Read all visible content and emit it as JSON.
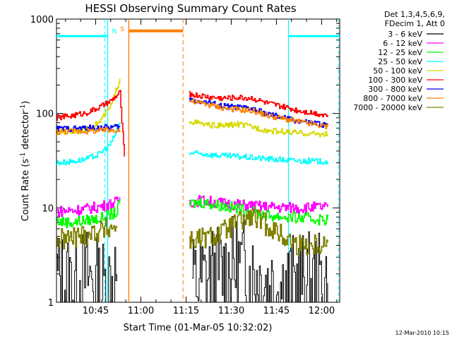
{
  "chart_data": {
    "type": "line",
    "title": "HESSI Observing Summary Count Rates",
    "xlabel": "Start Time (01-Mar-05 10:32:02)",
    "ylabel_prefix": "Count Rate (s",
    "ylabel_sup": "-1",
    "ylabel_mid": " detector",
    "ylabel_suffix": ")",
    "y_scale": "log",
    "ylim": [
      1,
      1000
    ],
    "xlim_minutes": [
      0,
      94
    ],
    "x_ticks": [
      {
        "m": 13,
        "label": "10:45"
      },
      {
        "m": 28,
        "label": "11:00"
      },
      {
        "m": 43,
        "label": "11:15"
      },
      {
        "m": 58,
        "label": "11:30"
      },
      {
        "m": 73,
        "label": "11:45"
      },
      {
        "m": 88,
        "label": "12:00"
      }
    ],
    "y_ticks": [
      {
        "v": 1,
        "label": "1"
      },
      {
        "v": 10,
        "label": "10"
      },
      {
        "v": 100,
        "label": "100"
      },
      {
        "v": 1000,
        "label": "1000"
      }
    ],
    "legend_header": [
      "Det 1,3,4,5,6,9,",
      "FDecim 1, Att 0"
    ],
    "series": [
      {
        "name": "3 - 6 keV",
        "color": "#000000",
        "seg1": [
          [
            0,
            1.8
          ],
          [
            5,
            1.6
          ],
          [
            10,
            1.9
          ],
          [
            15,
            1.4
          ],
          [
            20,
            2.0
          ]
        ],
        "seg2": [
          [
            45,
            1.6
          ],
          [
            50,
            1.8
          ],
          [
            55,
            2.1
          ],
          [
            60,
            2.5
          ],
          [
            65,
            2.0
          ],
          [
            70,
            1.6
          ],
          [
            75,
            1.5
          ],
          [
            80,
            1.6
          ],
          [
            90,
            1.6
          ]
        ]
      },
      {
        "name": "6 - 12 keV",
        "color": "#ff00ff",
        "seg1": [
          [
            0,
            9.2
          ],
          [
            5,
            9.4
          ],
          [
            10,
            9.8
          ],
          [
            15,
            10.4
          ],
          [
            20,
            11.5
          ],
          [
            21,
            13.0
          ]
        ],
        "seg2": [
          [
            44,
            11.5
          ],
          [
            48,
            12.0
          ],
          [
            55,
            11.2
          ],
          [
            60,
            10.8
          ],
          [
            65,
            10.5
          ],
          [
            70,
            10.2
          ],
          [
            80,
            10.0
          ],
          [
            90,
            10.2
          ]
        ]
      },
      {
        "name": "12 - 25 keV",
        "color": "#00ff00",
        "seg1": [
          [
            0,
            7.2
          ],
          [
            5,
            7.0
          ],
          [
            10,
            7.4
          ],
          [
            15,
            7.8
          ],
          [
            20,
            9.0
          ],
          [
            21,
            11.5
          ]
        ],
        "seg2": [
          [
            44,
            11.0
          ],
          [
            48,
            11.5
          ],
          [
            55,
            10.5
          ],
          [
            60,
            9.8
          ],
          [
            65,
            9.0
          ],
          [
            70,
            8.3
          ],
          [
            80,
            7.8
          ],
          [
            90,
            7.5
          ]
        ]
      },
      {
        "name": "25 - 50 keV",
        "color": "#00ffff",
        "seg1": [
          [
            0,
            30
          ],
          [
            5,
            31
          ],
          [
            10,
            33
          ],
          [
            14,
            37
          ],
          [
            18,
            48
          ],
          [
            21,
            80
          ]
        ],
        "seg2": [
          [
            44,
            38
          ],
          [
            50,
            37
          ],
          [
            55,
            35.5
          ],
          [
            60,
            35
          ],
          [
            65,
            34
          ],
          [
            70,
            33
          ],
          [
            80,
            31.5
          ],
          [
            90,
            31
          ]
        ]
      },
      {
        "name": "50 - 100 keV",
        "color": "#d8d800",
        "seg1": [
          [
            0,
            63
          ],
          [
            5,
            64
          ],
          [
            10,
            68
          ],
          [
            14,
            80
          ],
          [
            18,
            120
          ],
          [
            21,
            235
          ]
        ],
        "seg2": [
          [
            44,
            83
          ],
          [
            50,
            75
          ],
          [
            55,
            74
          ],
          [
            60,
            77
          ],
          [
            65,
            72
          ],
          [
            70,
            66
          ],
          [
            80,
            62
          ],
          [
            90,
            60
          ]
        ]
      },
      {
        "name": "100 - 300 keV",
        "color": "#ff0000",
        "seg1": [
          [
            0,
            90
          ],
          [
            5,
            95
          ],
          [
            10,
            102
          ],
          [
            14,
            115
          ],
          [
            18,
            135
          ],
          [
            21,
            165
          ],
          [
            22,
            60
          ],
          [
            22.5,
            35
          ]
        ],
        "seg2": [
          [
            44,
            160
          ],
          [
            50,
            150
          ],
          [
            55,
            145
          ],
          [
            60,
            148
          ],
          [
            65,
            145
          ],
          [
            70,
            128
          ],
          [
            80,
            108
          ],
          [
            90,
            96
          ]
        ]
      },
      {
        "name": "300 - 800 keV",
        "color": "#0000ff",
        "seg1": [
          [
            0,
            69
          ],
          [
            5,
            69
          ],
          [
            10,
            70
          ],
          [
            15,
            71
          ],
          [
            20,
            72
          ],
          [
            21,
            72
          ]
        ],
        "seg2": [
          [
            44,
            140
          ],
          [
            50,
            132
          ],
          [
            55,
            120
          ],
          [
            60,
            116
          ],
          [
            65,
            112
          ],
          [
            70,
            98
          ],
          [
            80,
            83
          ],
          [
            90,
            75
          ]
        ]
      },
      {
        "name": "800 - 7000 keV",
        "color": "#ff8000",
        "seg1": [
          [
            0,
            64
          ],
          [
            5,
            65
          ],
          [
            10,
            65
          ],
          [
            15,
            66
          ],
          [
            20,
            67
          ],
          [
            21,
            67
          ]
        ],
        "seg2": [
          [
            44,
            135
          ],
          [
            50,
            125
          ],
          [
            55,
            115
          ],
          [
            60,
            110
          ],
          [
            65,
            107
          ],
          [
            70,
            95
          ],
          [
            80,
            82
          ],
          [
            90,
            72
          ]
        ]
      },
      {
        "name": "7000 - 20000 keV",
        "color": "#808000",
        "seg1": [
          [
            0,
            4.5
          ],
          [
            5,
            4.8
          ],
          [
            10,
            5.3
          ],
          [
            15,
            5.8
          ],
          [
            20,
            6.5
          ]
        ],
        "seg2": [
          [
            44,
            4.5
          ],
          [
            50,
            4.8
          ],
          [
            55,
            5.5
          ],
          [
            60,
            7.0
          ],
          [
            65,
            8.0
          ],
          [
            70,
            6.5
          ],
          [
            75,
            5.0
          ],
          [
            80,
            4.0
          ],
          [
            90,
            4.3
          ]
        ]
      }
    ],
    "annotations": {
      "saa_label": "S",
      "night_label": "N",
      "saa_bar_value": 750,
      "night_bar_value": 660,
      "night_bar_color": "#00ffff",
      "saa_bar_color": "#ff8000",
      "saa_minutes": [
        24,
        42
      ],
      "night_minutes": [
        [
          0,
          17
        ],
        [
          77,
          94
        ]
      ]
    },
    "grid": false,
    "legend_position": "right"
  },
  "timestamp": "12-Mar-2010 10:15"
}
